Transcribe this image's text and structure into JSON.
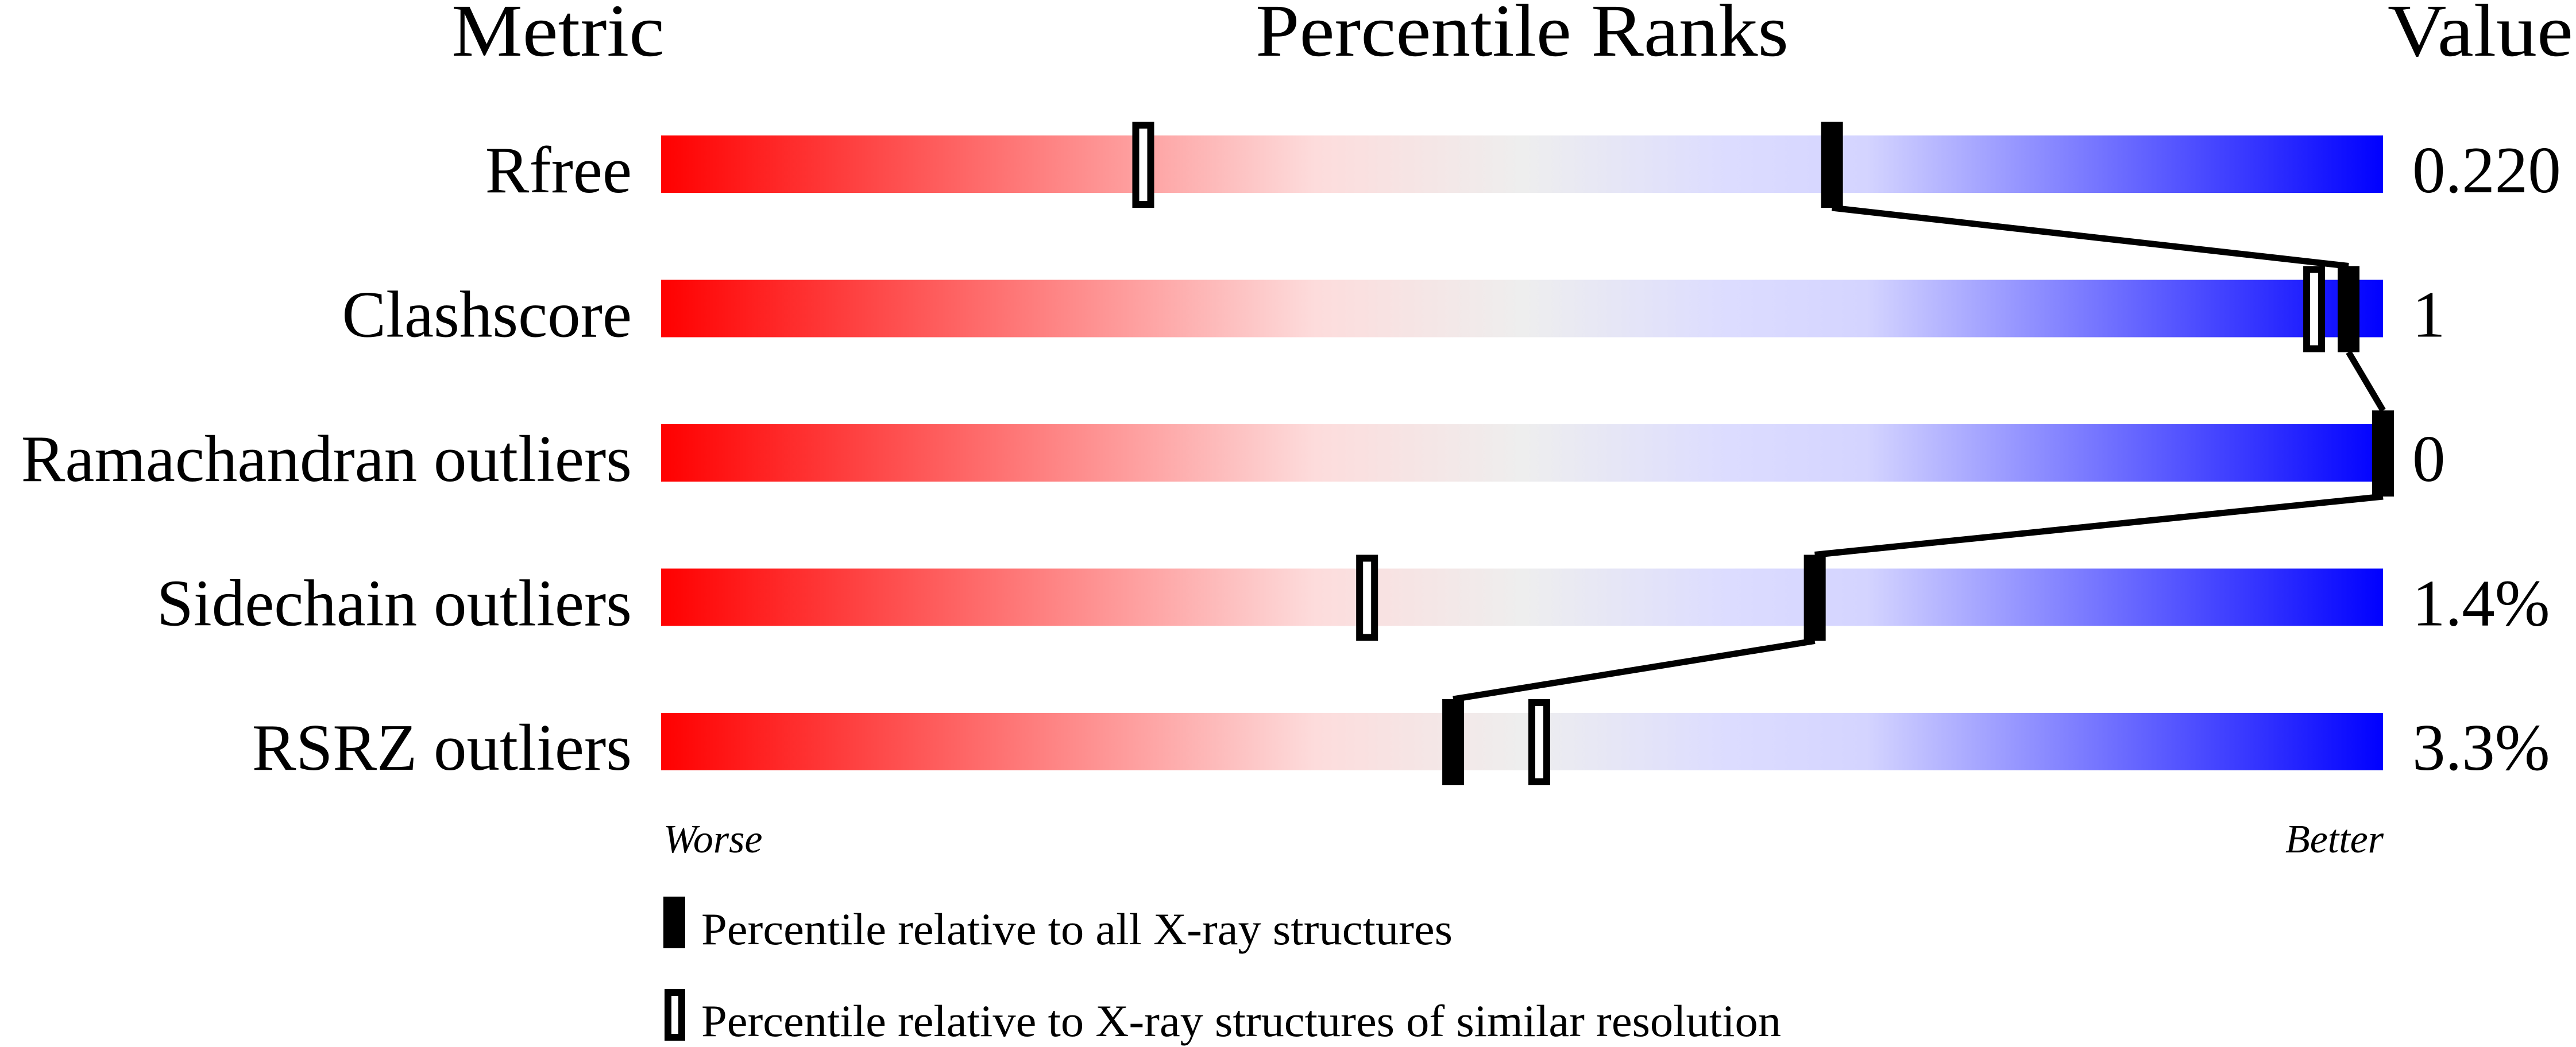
{
  "chart_data": {
    "type": "percentile-slider",
    "headers": {
      "metric": "Metric",
      "ranks": "Percentile Ranks",
      "value": "Value"
    },
    "xlim": [
      0,
      100
    ],
    "axis_labels": {
      "left": "Worse",
      "right": "Better"
    },
    "gradient_colors": [
      "#ff0000",
      "#fddcdc",
      "#eeeeee",
      "#dcdcff",
      "#0000ff"
    ],
    "metrics": [
      {
        "name": "Rfree",
        "value": "0.220",
        "percentile_all": 68,
        "percentile_similar": 28
      },
      {
        "name": "Clashscore",
        "value": "1",
        "percentile_all": 98,
        "percentile_similar": 96
      },
      {
        "name": "Ramachandran outliers",
        "value": "0",
        "percentile_all": 100,
        "percentile_similar": 100
      },
      {
        "name": "Sidechain outliers",
        "value": "1.4%",
        "percentile_all": 67,
        "percentile_similar": 41
      },
      {
        "name": "RSRZ outliers",
        "value": "3.3%",
        "percentile_all": 46,
        "percentile_similar": 51
      }
    ],
    "legend": [
      {
        "marker": "filled",
        "label": "Percentile relative to all X-ray structures"
      },
      {
        "marker": "hollow",
        "label": "Percentile relative to X-ray structures of similar resolution"
      }
    ]
  }
}
